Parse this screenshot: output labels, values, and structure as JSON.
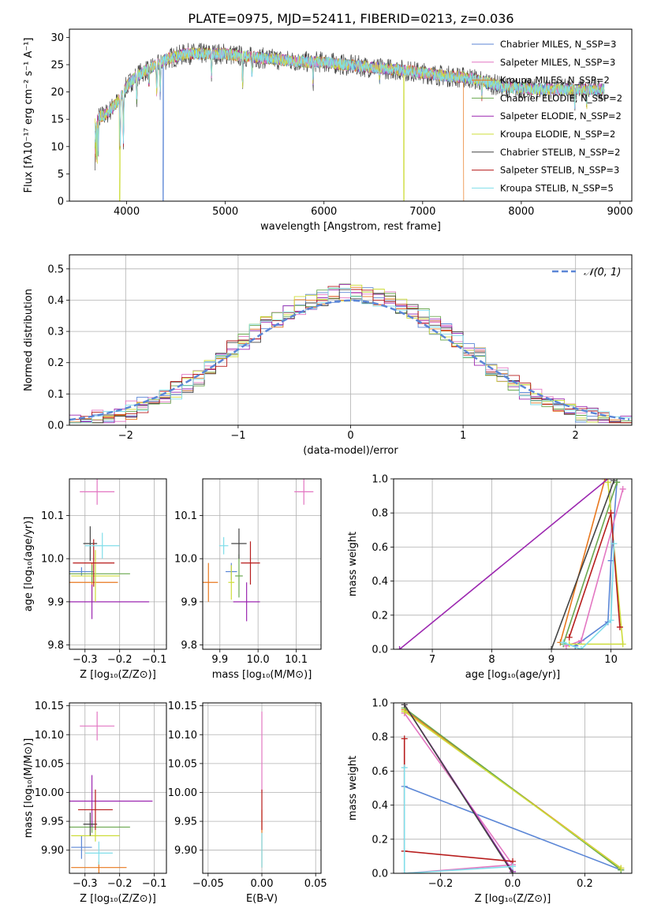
{
  "title": "PLATE=0975, MJD=52411, FIBERID=0213, z=0.036",
  "colors": {
    "c0": "#5b86d6",
    "c1": "#e377c2",
    "c2": "#e8781e",
    "c3": "#6aa84f",
    "c4": "#9c27b0",
    "c5": "#cddc39",
    "c6": "#444444",
    "c7": "#b71c1c",
    "c8": "#80deea",
    "normal": "#5b86d6"
  },
  "chart_data": [
    {
      "type": "line",
      "id": "spectrum",
      "title": "PLATE=0975, MJD=52411, FIBERID=0213, z=0.036",
      "xlabel": "wavelength [Angstrom, rest frame]",
      "ylabel": "Flux [fλ10⁻¹⁷ erg cm⁻² s⁻¹ A⁻¹]",
      "xlim": [
        3420,
        9120
      ],
      "ylim": [
        0,
        31.5
      ],
      "xticks": [
        4000,
        5000,
        6000,
        7000,
        8000,
        9000
      ],
      "yticks": [
        0,
        5,
        10,
        15,
        20,
        25,
        30
      ],
      "legend_position": "top-right",
      "series": [
        {
          "name": "Chabrier MILES, N_SSP=3"
        },
        {
          "name": "Salpeter MILES, N_SSP=3"
        },
        {
          "name": "Kroupa MILES, N_SSP=2"
        },
        {
          "name": "Chabrier ELODIE, N_SSP=2"
        },
        {
          "name": "Salpeter ELODIE, N_SSP=2"
        },
        {
          "name": "Kroupa ELODIE, N_SSP=2"
        },
        {
          "name": "Chabrier STELIB, N_SSP=2"
        },
        {
          "name": "Salpeter STELIB, N_SSP=3"
        },
        {
          "name": "Kroupa STELIB, N_SSP=5"
        }
      ],
      "continuum": [
        [
          3680,
          15
        ],
        [
          3800,
          16
        ],
        [
          3900,
          18
        ],
        [
          4000,
          21
        ],
        [
          4100,
          23
        ],
        [
          4200,
          24
        ],
        [
          4400,
          26
        ],
        [
          4600,
          27
        ],
        [
          4800,
          27
        ],
        [
          5000,
          27
        ],
        [
          5200,
          26.5
        ],
        [
          5500,
          26
        ],
        [
          5800,
          25.5
        ],
        [
          6000,
          25.5
        ],
        [
          6200,
          25
        ],
        [
          6500,
          24.5
        ],
        [
          6800,
          24
        ],
        [
          7000,
          23.5
        ],
        [
          7200,
          23
        ],
        [
          7500,
          22.5
        ],
        [
          7800,
          21
        ],
        [
          8100,
          20.5
        ],
        [
          8400,
          20.5
        ],
        [
          8800,
          20.5
        ]
      ],
      "absorption": [
        [
          3934,
          10
        ],
        [
          3968,
          9
        ],
        [
          4102,
          5
        ],
        [
          4226,
          3
        ],
        [
          4305,
          5
        ],
        [
          4340,
          6
        ],
        [
          4861,
          4
        ],
        [
          5175,
          5
        ],
        [
          5270,
          3
        ],
        [
          5890,
          4
        ],
        [
          6563,
          2
        ],
        [
          7600,
          3
        ],
        [
          8542,
          3
        ],
        [
          8662,
          3
        ]
      ],
      "dropouts": [
        [
          3930,
          "c5"
        ],
        [
          4370,
          "c0"
        ],
        [
          6810,
          "c5"
        ],
        [
          7420,
          "c2"
        ]
      ]
    },
    {
      "type": "bar",
      "id": "residuals",
      "xlabel": "(data-model)/error",
      "ylabel": "Normed distribution",
      "xlim": [
        -2.5,
        2.5
      ],
      "ylim": [
        0,
        0.545
      ],
      "xticks": [
        -2,
        -1,
        0,
        1,
        2
      ],
      "yticks": [
        0.0,
        0.1,
        0.2,
        0.3,
        0.4,
        0.5
      ],
      "grid": true,
      "legend": "𝒩(0, 1)",
      "bin_width": 0.1
    },
    {
      "type": "scatter",
      "id": "age-vs-Z",
      "xlabel": "Z [log₁₀(Z/Z⊙)]",
      "ylabel": "age  [log₁₀(age/yr)]",
      "xlim": [
        -0.345,
        -0.065
      ],
      "ylim": [
        9.79,
        10.185
      ],
      "xticks": [
        -0.3,
        -0.2,
        -0.1
      ],
      "yticks": [
        9.8,
        9.9,
        10.0,
        10.1
      ],
      "grid": true,
      "points": [
        {
          "c": "c0",
          "x": -0.31,
          "y": 9.97,
          "xe": 0.035,
          "ye": 0.01
        },
        {
          "c": "c1",
          "x": -0.265,
          "y": 10.155,
          "xe": 0.05,
          "ye": 0.03
        },
        {
          "c": "c2",
          "x": -0.28,
          "y": 9.945,
          "xe": 0.075,
          "ye": 0.045
        },
        {
          "c": "c3",
          "x": -0.28,
          "y": 9.965,
          "xe": 0.11,
          "ye": 0.02
        },
        {
          "c": "c4",
          "x": -0.28,
          "y": 9.9,
          "xe": 0.165,
          "ye": 0.04
        },
        {
          "c": "c5",
          "x": -0.27,
          "y": 9.96,
          "xe": 0.07,
          "ye": 0.06
        },
        {
          "c": "c6",
          "x": -0.285,
          "y": 10.035,
          "xe": 0.02,
          "ye": 0.04
        },
        {
          "c": "c7",
          "x": -0.275,
          "y": 9.99,
          "xe": 0.06,
          "ye": 0.055
        },
        {
          "c": "c8",
          "x": -0.25,
          "y": 10.03,
          "xe": 0.05,
          "ye": 0.03
        }
      ]
    },
    {
      "type": "scatter",
      "id": "age-vs-mass",
      "xlabel": "mass [log₁₀(M/M⊙)]",
      "ylabel": "",
      "xlim": [
        9.855,
        10.165
      ],
      "ylim": [
        9.79,
        10.185
      ],
      "xticks": [
        9.9,
        10.0,
        10.1
      ],
      "yticks": [
        9.8,
        9.9,
        10.0,
        10.1
      ],
      "grid": true,
      "points": [
        {
          "c": "c0",
          "x": 9.93,
          "y": 9.97,
          "xe": 0.015,
          "ye": 0.02
        },
        {
          "c": "c1",
          "x": 10.12,
          "y": 10.155,
          "xe": 0.025,
          "ye": 0.03
        },
        {
          "c": "c2",
          "x": 9.87,
          "y": 9.945,
          "xe": 0.025,
          "ye": 0.045
        },
        {
          "c": "c3",
          "x": 9.95,
          "y": 9.96,
          "xe": 0.01,
          "ye": 0.05
        },
        {
          "c": "c4",
          "x": 9.97,
          "y": 9.9,
          "xe": 0.035,
          "ye": 0.045
        },
        {
          "c": "c5",
          "x": 9.93,
          "y": 9.945,
          "xe": 0.008,
          "ye": 0.04
        },
        {
          "c": "c6",
          "x": 9.95,
          "y": 10.035,
          "xe": 0.02,
          "ye": 0.035
        },
        {
          "c": "c7",
          "x": 9.98,
          "y": 9.99,
          "xe": 0.025,
          "ye": 0.05
        },
        {
          "c": "c8",
          "x": 9.91,
          "y": 10.03,
          "xe": 0.012,
          "ye": 0.02
        }
      ]
    },
    {
      "type": "line",
      "id": "weight-vs-age",
      "xlabel": "age  [log₁₀(age/yr)]",
      "ylabel": "mass weight",
      "xlim": [
        6.35,
        10.35
      ],
      "ylim": [
        0,
        1.0
      ],
      "xticks": [
        7,
        8,
        9,
        10
      ],
      "yticks": [
        0.0,
        0.2,
        0.4,
        0.6,
        0.8,
        1.0
      ],
      "grid": true,
      "series": [
        {
          "c": "c0",
          "points": [
            [
              9.4,
              0.02
            ],
            [
              9.95,
              0.16
            ],
            [
              10.0,
              0.52
            ],
            [
              10.1,
              0.98
            ]
          ]
        },
        {
          "c": "c1",
          "points": [
            [
              9.25,
              0.02
            ],
            [
              9.5,
              0.05
            ],
            [
              10.2,
              0.94
            ]
          ]
        },
        {
          "c": "c2",
          "points": [
            [
              9.15,
              0.04
            ],
            [
              9.9,
              1.0
            ]
          ]
        },
        {
          "c": "c3",
          "points": [
            [
              9.2,
              0.03
            ],
            [
              10.1,
              0.98
            ]
          ]
        },
        {
          "c": "c4",
          "points": [
            [
              6.45,
              0.0
            ],
            [
              9.95,
              1.0
            ]
          ]
        },
        {
          "c": "c5",
          "points": [
            [
              9.3,
              0.03
            ],
            [
              10.2,
              0.03
            ],
            [
              9.95,
              0.98
            ]
          ]
        },
        {
          "c": "c6",
          "points": [
            [
              9.0,
              0.0
            ],
            [
              10.05,
              0.99
            ]
          ]
        },
        {
          "c": "c7",
          "points": [
            [
              9.3,
              0.07
            ],
            [
              10.0,
              0.8
            ],
            [
              10.15,
              0.13
            ]
          ]
        },
        {
          "c": "c8",
          "points": [
            [
              9.2,
              0.04
            ],
            [
              9.5,
              0.0
            ],
            [
              10.0,
              0.17
            ],
            [
              10.05,
              0.62
            ]
          ]
        }
      ]
    },
    {
      "type": "scatter",
      "id": "mass-vs-Z",
      "xlabel": "Z [log₁₀(Z/Z⊙)]",
      "ylabel": "mass [log₁₀(M/M⊙)]",
      "xlim": [
        -0.345,
        -0.065
      ],
      "ylim": [
        9.86,
        10.155
      ],
      "xticks": [
        -0.3,
        -0.2,
        -0.1
      ],
      "yticks": [
        9.9,
        9.95,
        10.0,
        10.05,
        10.1,
        10.15
      ],
      "grid": true,
      "points": [
        {
          "c": "c0",
          "x": -0.31,
          "y": 9.905,
          "xe": 0.03,
          "ye": 0.02
        },
        {
          "c": "c1",
          "x": -0.265,
          "y": 10.115,
          "xe": 0.05,
          "ye": 0.025
        },
        {
          "c": "c2",
          "x": -0.26,
          "y": 9.87,
          "xe": 0.08,
          "ye": 0.01
        },
        {
          "c": "c3",
          "x": -0.28,
          "y": 9.94,
          "xe": 0.11,
          "ye": 0.01
        },
        {
          "c": "c4",
          "x": -0.28,
          "y": 9.985,
          "xe": 0.175,
          "ye": 0.045
        },
        {
          "c": "c5",
          "x": -0.27,
          "y": 9.925,
          "xe": 0.07,
          "ye": 0.01
        },
        {
          "c": "c6",
          "x": -0.285,
          "y": 9.945,
          "xe": 0.02,
          "ye": 0.02
        },
        {
          "c": "c7",
          "x": -0.27,
          "y": 9.97,
          "xe": 0.05,
          "ye": 0.035
        },
        {
          "c": "c8",
          "x": -0.26,
          "y": 9.895,
          "xe": 0.04,
          "ye": 0.02
        }
      ]
    },
    {
      "type": "scatter",
      "id": "mass-vs-EBV",
      "xlabel": "E(B-V)",
      "ylabel": "",
      "xlim": [
        -0.055,
        0.055
      ],
      "ylim": [
        9.86,
        10.155
      ],
      "xticks": [
        -0.05,
        0.0,
        0.05
      ],
      "yticks": [
        9.9,
        9.95,
        10.0,
        10.05,
        10.1,
        10.15
      ],
      "grid": true,
      "points": [
        {
          "c": "c1",
          "x": 0.0,
          "y": 10.07,
          "xe": 0.0,
          "ye": 0.07
        },
        {
          "c": "c2",
          "x": 0.0,
          "y": 9.92,
          "xe": 0.0,
          "ye": 0.05
        },
        {
          "c": "c7",
          "x": 0.0,
          "y": 9.97,
          "xe": 0.0,
          "ye": 0.035
        },
        {
          "c": "c8",
          "x": 0.0,
          "y": 9.9,
          "xe": 0.0,
          "ye": 0.03
        }
      ]
    },
    {
      "type": "line",
      "id": "weight-vs-Z",
      "xlabel": "Z [log₁₀(Z/Z⊙)]",
      "ylabel": "mass weight",
      "xlim": [
        -0.33,
        0.33
      ],
      "ylim": [
        0,
        1.0
      ],
      "xticks": [
        -0.2,
        0.0,
        0.2
      ],
      "yticks": [
        0.0,
        0.2,
        0.4,
        0.6,
        0.8,
        1.0
      ],
      "grid": true,
      "series": [
        {
          "c": "c0",
          "points": [
            [
              -0.3,
              0.51
            ],
            [
              0.3,
              0.02
            ]
          ]
        },
        {
          "c": "c1",
          "points": [
            [
              -0.3,
              0.94
            ],
            [
              0.0,
              0.05
            ],
            [
              -0.3,
              0.0
            ]
          ]
        },
        {
          "c": "c2",
          "points": [
            [
              -0.3,
              0.96
            ],
            [
              0.3,
              0.03
            ]
          ]
        },
        {
          "c": "c3",
          "points": [
            [
              -0.3,
              0.97
            ],
            [
              0.3,
              0.02
            ]
          ]
        },
        {
          "c": "c4",
          "points": [
            [
              -0.3,
              0.99
            ],
            [
              0.0,
              0.01
            ]
          ]
        },
        {
          "c": "c5",
          "points": [
            [
              -0.3,
              0.95
            ],
            [
              0.3,
              0.03
            ]
          ]
        },
        {
          "c": "c6",
          "points": [
            [
              -0.3,
              0.99
            ],
            [
              0.0,
              0.0
            ]
          ]
        },
        {
          "c": "c7",
          "points": [
            [
              -0.3,
              0.79
            ],
            [
              -0.3,
              0.13
            ],
            [
              0.0,
              0.07
            ]
          ]
        },
        {
          "c": "c8",
          "points": [
            [
              -0.3,
              0.62
            ],
            [
              -0.3,
              0.0
            ],
            [
              0.0,
              0.04
            ]
          ]
        }
      ]
    }
  ]
}
